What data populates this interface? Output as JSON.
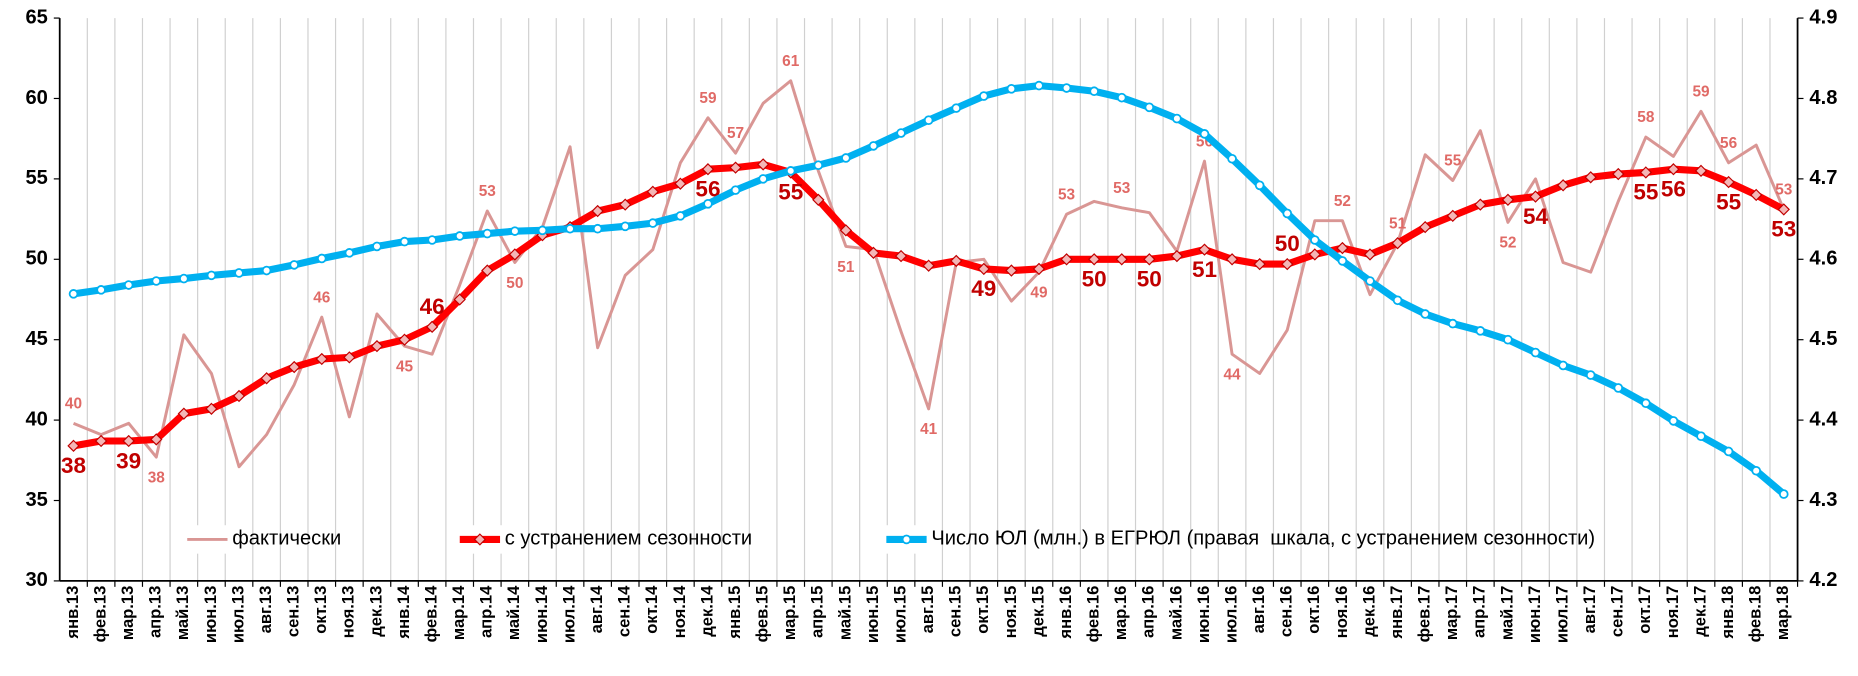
{
  "chart_data": {
    "type": "line",
    "categories": [
      "янв.13",
      "фев.13",
      "мар.13",
      "апр.13",
      "май.13",
      "июн.13",
      "июл.13",
      "авг.13",
      "сен.13",
      "окт.13",
      "ноя.13",
      "дек.13",
      "янв.14",
      "фев.14",
      "мар.14",
      "апр.14",
      "май.14",
      "июн.14",
      "июл.14",
      "авг.14",
      "сен.14",
      "окт.14",
      "ноя.14",
      "дек.14",
      "янв.15",
      "фев.15",
      "мар.15",
      "апр.15",
      "май.15",
      "июн.15",
      "июл.15",
      "авг.15",
      "сен.15",
      "окт.15",
      "ноя.15",
      "дек.15",
      "янв.16",
      "фев.16",
      "мар.16",
      "апр.16",
      "май.16",
      "июн.16",
      "июл.16",
      "авг.16",
      "сен.16",
      "окт.16",
      "ноя.16",
      "дек.16",
      "янв.17",
      "фев.17",
      "мар.17",
      "апр.17",
      "май.17",
      "июн.17",
      "июл.17",
      "авг.17",
      "сен.17",
      "окт.17",
      "ноя.17",
      "дек.17",
      "янв.18",
      "фев.18",
      "мар.18"
    ],
    "series": [
      {
        "name": "фактически",
        "color": "#d99694",
        "values": [
          39.8,
          39.1,
          39.8,
          37.7,
          45.3,
          42.9,
          37.1,
          39.1,
          42.2,
          46.4,
          40.2,
          46.6,
          44.6,
          44.1,
          48.4,
          53.0,
          49.8,
          52.0,
          57.0,
          44.5,
          49.0,
          50.6,
          56.0,
          58.8,
          56.6,
          59.7,
          61.1,
          55.5,
          50.8,
          50.6,
          45.5,
          40.7,
          49.8,
          50.0,
          47.4,
          49.2,
          52.8,
          53.6,
          53.2,
          52.9,
          50.5,
          56.1,
          44.1,
          42.9,
          45.6,
          52.4,
          52.4,
          47.8,
          51.0,
          56.5,
          54.9,
          58.0,
          52.3,
          55.0,
          49.8,
          49.2,
          53.6,
          57.6,
          56.4,
          59.2,
          56.0,
          57.1,
          53.1
        ],
        "value_labels": [
          "40",
          null,
          null,
          "38",
          null,
          null,
          null,
          null,
          null,
          "46",
          null,
          null,
          "45",
          null,
          null,
          "53",
          "50",
          null,
          null,
          null,
          null,
          null,
          null,
          "59",
          "57",
          null,
          "61",
          null,
          "51",
          null,
          null,
          "41",
          null,
          null,
          null,
          "49",
          "53",
          null,
          "53",
          null,
          null,
          "56",
          "44",
          null,
          null,
          null,
          "52",
          null,
          "51",
          null,
          "55",
          null,
          "52",
          null,
          null,
          null,
          null,
          "58",
          null,
          "59",
          "56",
          null,
          "53"
        ]
      },
      {
        "name": "с устранением сезонности",
        "color": "#ff0000",
        "values": [
          38.4,
          38.7,
          38.7,
          38.8,
          40.4,
          40.7,
          41.5,
          42.6,
          43.3,
          43.8,
          43.9,
          44.6,
          45.0,
          45.8,
          47.5,
          49.3,
          50.3,
          51.5,
          52.0,
          53.0,
          53.4,
          54.2,
          54.7,
          55.6,
          55.7,
          55.9,
          55.4,
          53.7,
          51.8,
          50.4,
          50.2,
          49.6,
          49.9,
          49.4,
          49.3,
          49.4,
          50.0,
          50.0,
          50.0,
          50.0,
          50.2,
          50.6,
          50.0,
          49.7,
          49.7,
          50.3,
          50.7,
          50.3,
          51.0,
          52.0,
          52.7,
          53.4,
          53.7,
          53.9,
          54.6,
          55.1,
          55.3,
          55.4,
          55.6,
          55.5,
          54.8,
          54.0,
          53.1
        ],
        "value_labels": [
          "38",
          null,
          "39",
          null,
          null,
          null,
          null,
          null,
          null,
          null,
          null,
          null,
          null,
          "46",
          null,
          null,
          null,
          null,
          null,
          null,
          null,
          null,
          null,
          "56",
          null,
          null,
          "55",
          null,
          null,
          null,
          null,
          null,
          null,
          "49",
          null,
          null,
          null,
          "50",
          null,
          "50",
          null,
          "51",
          null,
          null,
          "50",
          null,
          null,
          null,
          null,
          null,
          null,
          null,
          null,
          "54",
          null,
          null,
          null,
          "55",
          "56",
          null,
          "55",
          null,
          "53"
        ]
      },
      {
        "name": "Число ЮЛ (млн.) в ЕГРЮЛ (правая  шкала, с устранением сезонности)",
        "color": "#00b0f0",
        "axis": "y2",
        "values": [
          4.557,
          4.562,
          4.568,
          4.573,
          4.576,
          4.58,
          4.583,
          4.586,
          4.593,
          4.601,
          4.608,
          4.616,
          4.622,
          4.624,
          4.629,
          4.632,
          4.635,
          4.636,
          4.638,
          4.638,
          4.641,
          4.645,
          4.654,
          4.669,
          4.686,
          4.7,
          4.71,
          4.717,
          4.726,
          4.741,
          4.757,
          4.773,
          4.788,
          4.803,
          4.812,
          4.816,
          4.813,
          4.809,
          4.801,
          4.789,
          4.775,
          4.756,
          4.725,
          4.692,
          4.657,
          4.624,
          4.598,
          4.573,
          4.549,
          4.532,
          4.52,
          4.511,
          4.5,
          4.484,
          4.468,
          4.456,
          4.44,
          4.421,
          4.399,
          4.38,
          4.361,
          4.337,
          4.308
        ]
      }
    ],
    "ylim": [
      30,
      65
    ],
    "yticks": [
      30,
      35,
      40,
      45,
      50,
      55,
      60,
      65
    ],
    "y2lim": [
      4.2,
      4.9
    ],
    "y2ticks": [
      4.2,
      4.3,
      4.4,
      4.5,
      4.6,
      4.7,
      4.8,
      4.9
    ],
    "grid": "x"
  }
}
